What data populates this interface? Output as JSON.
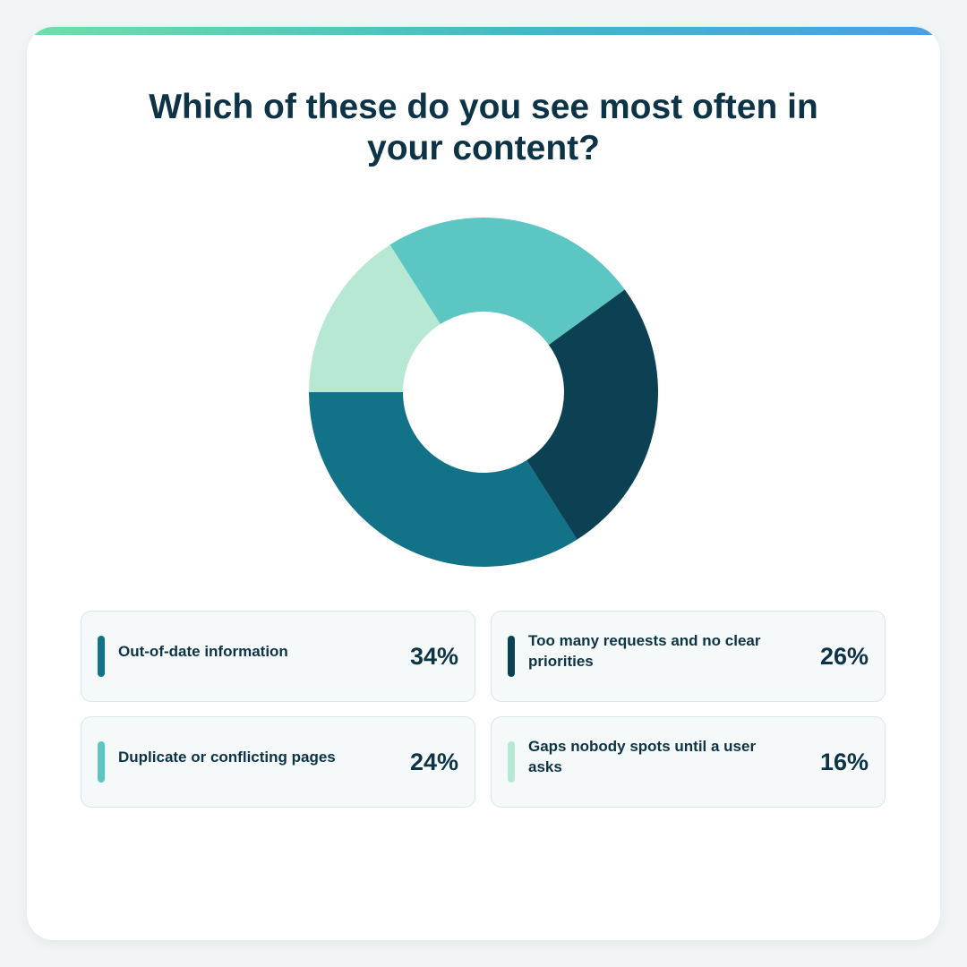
{
  "chart_data": {
    "type": "pie",
    "title": "Which of these do you see most often in your content?",
    "categories": [
      "Out-of-date information",
      "Too many requests and no clear priorities",
      "Duplicate or conflicting pages",
      "Gaps nobody spots until a user asks"
    ],
    "values": [
      34,
      26,
      24,
      16
    ],
    "value_labels": [
      "34%",
      "26%",
      "24%",
      "16%"
    ],
    "colors": [
      "#127287",
      "#0c4153",
      "#5cc6c2",
      "#b7e8d3"
    ]
  }
}
